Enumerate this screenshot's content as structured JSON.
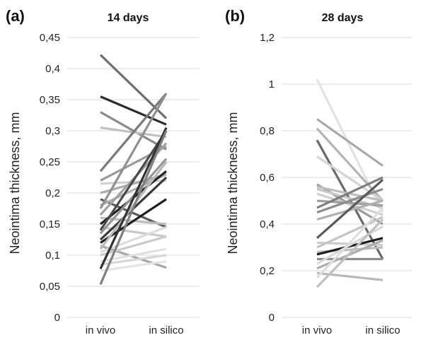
{
  "chart_data": [
    {
      "type": "line",
      "panel_label": "(a)",
      "title": "14 days",
      "ylabel": "Neointima thickness, mm",
      "xlabel": "",
      "categories": [
        "in vivo",
        "in silico"
      ],
      "ylim": [
        0,
        0.45
      ],
      "yticks": [
        "0",
        "0,05",
        "0,1",
        "0,15",
        "0,2",
        "0,25",
        "0,3",
        "0,35",
        "0,4",
        "0,45"
      ],
      "grid": true,
      "series": [
        {
          "values": [
            0.422,
            0.32
          ],
          "color": "#6e6e6e"
        },
        {
          "values": [
            0.355,
            0.31
          ],
          "color": "#2b2b2b"
        },
        {
          "values": [
            0.33,
            0.27
          ],
          "color": "#8a8a8a"
        },
        {
          "values": [
            0.305,
            0.29
          ],
          "color": "#c0c0c0"
        },
        {
          "values": [
            0.235,
            0.36
          ],
          "color": "#7a7a7a"
        },
        {
          "values": [
            0.22,
            0.275
          ],
          "color": "#9a9a9a"
        },
        {
          "values": [
            0.215,
            0.22
          ],
          "color": "#d0d0d0"
        },
        {
          "values": [
            0.2,
            0.23
          ],
          "color": "#aaaaaa"
        },
        {
          "values": [
            0.19,
            0.145
          ],
          "color": "#5a5a5a"
        },
        {
          "values": [
            0.18,
            0.23
          ],
          "color": "#b0b0b0"
        },
        {
          "values": [
            0.175,
            0.36
          ],
          "color": "#909090"
        },
        {
          "values": [
            0.165,
            0.28
          ],
          "color": "#a0a0a0"
        },
        {
          "values": [
            0.16,
            0.15
          ],
          "color": "#bcbcbc"
        },
        {
          "values": [
            0.15,
            0.235
          ],
          "color": "#222222"
        },
        {
          "values": [
            0.145,
            0.13
          ],
          "color": "#c8c8c8"
        },
        {
          "values": [
            0.14,
            0.3
          ],
          "color": "#4a4a4a"
        },
        {
          "values": [
            0.135,
            0.255
          ],
          "color": "#969696"
        },
        {
          "values": [
            0.125,
            0.225
          ],
          "color": "#3a3a3a"
        },
        {
          "values": [
            0.12,
            0.19
          ],
          "color": "#1e1e1e"
        },
        {
          "values": [
            0.115,
            0.08
          ],
          "color": "#a6a6a6"
        },
        {
          "values": [
            0.11,
            0.25
          ],
          "color": "#b8b8b8"
        },
        {
          "values": [
            0.105,
            0.145
          ],
          "color": "#dcdcdc"
        },
        {
          "values": [
            0.1,
            0.13
          ],
          "color": "#cacaca"
        },
        {
          "values": [
            0.09,
            0.11
          ],
          "color": "#e0e0e0"
        },
        {
          "values": [
            0.085,
            0.1
          ],
          "color": "#d6d6d6"
        },
        {
          "values": [
            0.078,
            0.305
          ],
          "color": "#333333"
        },
        {
          "values": [
            0.075,
            0.09
          ],
          "color": "#e4e4e4"
        },
        {
          "values": [
            0.053,
            0.3
          ],
          "color": "#808080"
        }
      ]
    },
    {
      "type": "line",
      "panel_label": "(b)",
      "title": "28 days",
      "ylabel": "Neointima thickness, mm",
      "xlabel": "",
      "categories": [
        "in vivo",
        "in silico"
      ],
      "ylim": [
        0,
        1.2
      ],
      "yticks": [
        "0",
        "0,2",
        "0,4",
        "0,6",
        "0,8",
        "1",
        "1,2"
      ],
      "grid": true,
      "series": [
        {
          "values": [
            1.02,
            0.45
          ],
          "color": "#e2e2e2"
        },
        {
          "values": [
            0.85,
            0.65
          ],
          "color": "#a8a8a8"
        },
        {
          "values": [
            0.81,
            0.5
          ],
          "color": "#b4b4b4"
        },
        {
          "values": [
            0.76,
            0.25
          ],
          "color": "#6a6a6a"
        },
        {
          "values": [
            0.69,
            0.5
          ],
          "color": "#d4d4d4"
        },
        {
          "values": [
            0.57,
            0.4
          ],
          "color": "#9a9a9a"
        },
        {
          "values": [
            0.56,
            0.5
          ],
          "color": "#bebebe"
        },
        {
          "values": [
            0.55,
            0.47
          ],
          "color": "#c8c8c8"
        },
        {
          "values": [
            0.53,
            0.44
          ],
          "color": "#d0d0d0"
        },
        {
          "values": [
            0.5,
            0.48
          ],
          "color": "#a0a0a0"
        },
        {
          "values": [
            0.47,
            0.6
          ],
          "color": "#7e7e7e"
        },
        {
          "values": [
            0.45,
            0.55
          ],
          "color": "#8c8c8c"
        },
        {
          "values": [
            0.42,
            0.5
          ],
          "color": "#b0b0b0"
        },
        {
          "values": [
            0.34,
            0.59
          ],
          "color": "#5a5a5a"
        },
        {
          "values": [
            0.32,
            0.31
          ],
          "color": "#cccccc"
        },
        {
          "values": [
            0.3,
            0.43
          ],
          "color": "#c4c4c4"
        },
        {
          "values": [
            0.28,
            0.3
          ],
          "color": "#bcbcbc"
        },
        {
          "values": [
            0.27,
            0.34
          ],
          "color": "#1e1e1e"
        },
        {
          "values": [
            0.25,
            0.25
          ],
          "color": "#8e8e8e"
        },
        {
          "values": [
            0.23,
            0.39
          ],
          "color": "#d8d8d8"
        },
        {
          "values": [
            0.21,
            0.33
          ],
          "color": "#acacac"
        },
        {
          "values": [
            0.19,
            0.16
          ],
          "color": "#b8b8b8"
        },
        {
          "values": [
            0.17,
            0.47
          ],
          "color": "#dedede"
        },
        {
          "values": [
            0.13,
            0.42
          ],
          "color": "#c0c0c0"
        }
      ]
    }
  ]
}
